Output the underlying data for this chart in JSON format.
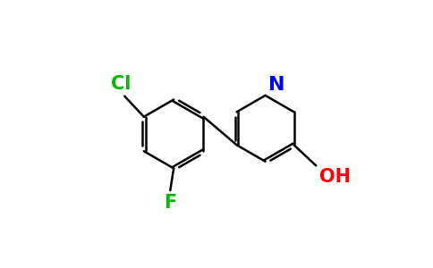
{
  "bg_color": "#ffffff",
  "bond_color": "#000000",
  "cl_color": "#00bb00",
  "f_color": "#00bb00",
  "n_color": "#0000ff",
  "oh_color": "#ff0000",
  "bond_width": 1.8,
  "dbo": 0.025,
  "font_size": 14,
  "figsize": [
    4.84,
    3.0
  ],
  "dpi": 100,
  "xlim": [
    0,
    4.84
  ],
  "ylim": [
    0,
    3.0
  ]
}
